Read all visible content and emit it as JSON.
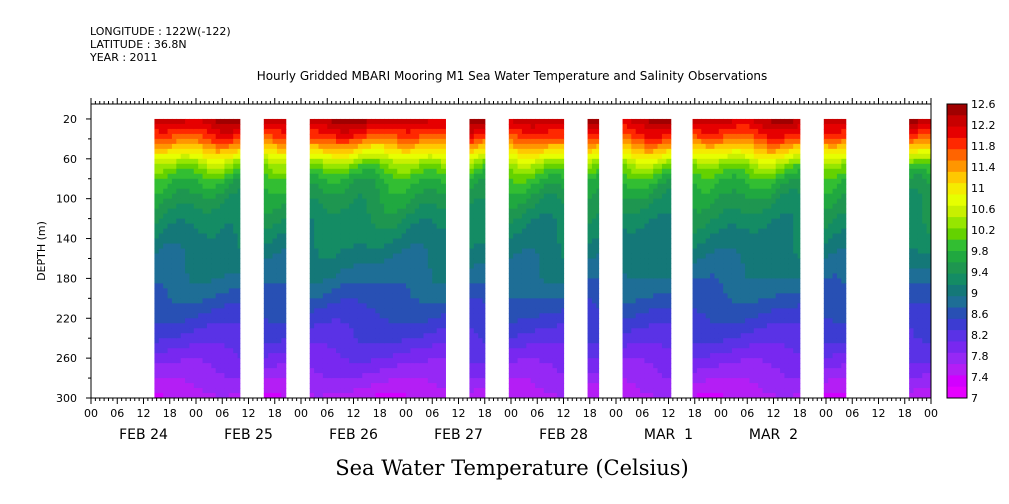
{
  "meta": {
    "longitude": "LONGITUDE : 122W(-122)",
    "latitude": "LATITUDE : 36.8N",
    "year": "YEAR : 2011"
  },
  "chart_data": {
    "type": "heatmap",
    "title": "Hourly Gridded MBARI Mooring M1 Sea Water Temperature and Salinity Observations",
    "variable_label": "Sea Water Temperature (Celsius)",
    "ylabel": "DEPTH (m)",
    "y_ticks": [
      20,
      60,
      100,
      140,
      180,
      220,
      260,
      300
    ],
    "ylim": [
      300,
      5
    ],
    "x_hour_ticks": [
      "00",
      "06",
      "12",
      "18",
      "00",
      "06",
      "12",
      "18",
      "00",
      "06",
      "12",
      "18",
      "00",
      "06",
      "12",
      "18",
      "00",
      "06",
      "12",
      "18",
      "00",
      "06",
      "12",
      "18",
      "00",
      "06",
      "12",
      "18",
      "00",
      "06",
      "12",
      "18",
      "00"
    ],
    "day_labels": [
      "FEB 24",
      "FEB 25",
      "FEB 26",
      "FEB 27",
      "FEB 28",
      "MAR  1",
      "MAR  2"
    ],
    "time_range_hours": [
      0,
      192
    ],
    "data_segments_hours": [
      [
        14.5,
        34.0
      ],
      [
        39.5,
        44.5
      ],
      [
        50.0,
        81.0
      ],
      [
        86.5,
        90.0
      ],
      [
        95.5,
        108.0
      ],
      [
        113.5,
        116.0
      ],
      [
        121.5,
        132.5
      ],
      [
        137.5,
        162.0
      ],
      [
        167.5,
        172.5
      ],
      [
        187.0,
        192.0
      ]
    ],
    "depth_data_range": [
      20,
      300
    ],
    "colorbar": {
      "labels": [
        "12.6",
        "12.2",
        "11.8",
        "11.4",
        "11",
        "10.6",
        "10.2",
        "9.8",
        "9.4",
        "9",
        "8.6",
        "8.2",
        "7.8",
        "7.4",
        "7"
      ],
      "colors": [
        "#a00000",
        "#c80000",
        "#e60000",
        "#ff2800",
        "#ff6400",
        "#ff9600",
        "#ffc800",
        "#f5eb00",
        "#e6ff00",
        "#c8f000",
        "#96e600",
        "#64d200",
        "#32be32",
        "#20a840",
        "#1e9650",
        "#148c64",
        "#147878",
        "#1e6e96",
        "#2850b4",
        "#3c3cd2",
        "#5a32e6",
        "#7828f0",
        "#9628f5",
        "#b41ef5",
        "#d200ff",
        "#e600ff"
      ]
    },
    "profile": [
      [
        20,
        12.4
      ],
      [
        40,
        11.7
      ],
      [
        55,
        10.9
      ],
      [
        65,
        10.3
      ],
      [
        80,
        9.8
      ],
      [
        100,
        9.5
      ],
      [
        120,
        9.3
      ],
      [
        140,
        9.15
      ],
      [
        160,
        9.0
      ],
      [
        180,
        8.85
      ],
      [
        200,
        8.65
      ],
      [
        220,
        8.45
      ],
      [
        240,
        8.25
      ],
      [
        260,
        8.0
      ],
      [
        280,
        7.75
      ],
      [
        300,
        7.5
      ]
    ]
  }
}
